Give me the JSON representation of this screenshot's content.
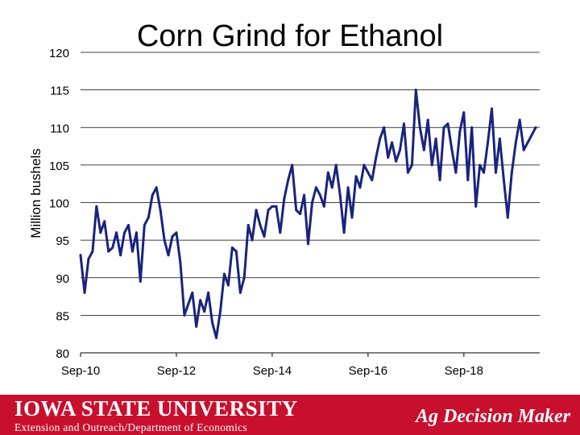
{
  "footer": {
    "university": "Iowa State University",
    "department": "Extension and Outreach/Department of Economics",
    "brand": "Ag Decision Maker",
    "color": "#c8102e"
  },
  "chart_data": {
    "type": "line",
    "title": "Corn Grind for Ethanol",
    "xlabel": "",
    "ylabel": "Million bushels",
    "ylim": [
      80,
      120
    ],
    "yticks": [
      80,
      85,
      90,
      95,
      100,
      105,
      110,
      115,
      120
    ],
    "xlim": [
      "2010-09",
      "2020-04"
    ],
    "xticks": [
      "Sep-10",
      "Sep-12",
      "Sep-14",
      "Sep-16",
      "Sep-18"
    ],
    "grid": "horizontal",
    "line_color": "#1a237e",
    "series": [
      {
        "name": "",
        "x": [
          "2010-09",
          "2010-10",
          "2010-11",
          "2010-12",
          "2011-01",
          "2011-02",
          "2011-03",
          "2011-04",
          "2011-05",
          "2011-06",
          "2011-07",
          "2011-08",
          "2011-09",
          "2011-10",
          "2011-11",
          "2011-12",
          "2012-01",
          "2012-02",
          "2012-03",
          "2012-04",
          "2012-05",
          "2012-06",
          "2012-07",
          "2012-08",
          "2012-09",
          "2012-10",
          "2012-11",
          "2012-12",
          "2013-01",
          "2013-02",
          "2013-03",
          "2013-04",
          "2013-05",
          "2013-06",
          "2013-07",
          "2013-08",
          "2013-09",
          "2013-10",
          "2013-11",
          "2013-12",
          "2014-01",
          "2014-02",
          "2014-03",
          "2014-04",
          "2014-05",
          "2014-06",
          "2014-07",
          "2014-08",
          "2014-09",
          "2014-10",
          "2014-11",
          "2014-12",
          "2015-01",
          "2015-02",
          "2015-03",
          "2015-04",
          "2015-05",
          "2015-06",
          "2015-07",
          "2015-08",
          "2015-09",
          "2015-10",
          "2015-11",
          "2015-12",
          "2016-01",
          "2016-02",
          "2016-03",
          "2016-04",
          "2016-05",
          "2016-06",
          "2016-07",
          "2016-08",
          "2016-09",
          "2016-10",
          "2016-11",
          "2016-12",
          "2017-01",
          "2017-02",
          "2017-03",
          "2017-04",
          "2017-05",
          "2017-06",
          "2017-07",
          "2017-08",
          "2017-09",
          "2017-10",
          "2017-11",
          "2017-12",
          "2018-01",
          "2018-02",
          "2018-03",
          "2018-04",
          "2018-05",
          "2018-06",
          "2018-07",
          "2018-08",
          "2018-09",
          "2018-10",
          "2018-11",
          "2018-12",
          "2019-01",
          "2019-02",
          "2019-03",
          "2019-04",
          "2019-05",
          "2019-06",
          "2019-07",
          "2019-08",
          "2019-09",
          "2019-10",
          "2019-11",
          "2019-12",
          "2020-01",
          "2020-02",
          "2020-03"
        ],
        "values": [
          93,
          88,
          92.5,
          93.5,
          99.5,
          96,
          97.5,
          93.5,
          94,
          96,
          93,
          96,
          97,
          93.5,
          96,
          89.5,
          97,
          98,
          101,
          102,
          99,
          95,
          93,
          95.5,
          96,
          92,
          85,
          86.5,
          88,
          83.5,
          87,
          85.5,
          88,
          84,
          82,
          85.5,
          90.5,
          89,
          94,
          93.5,
          88,
          90,
          97,
          95,
          99,
          97,
          95.5,
          99,
          99.5,
          99.5,
          96,
          100.5,
          103,
          105,
          99,
          98.5,
          101,
          94.5,
          100,
          102,
          101,
          99.5,
          104,
          102,
          105,
          101,
          96,
          102,
          98,
          103.5,
          102,
          105,
          104,
          103,
          106,
          108.5,
          110,
          106,
          108,
          105.5,
          107,
          110.5,
          104,
          105,
          115,
          110,
          107,
          111,
          105,
          108.5,
          103,
          110,
          110.5,
          107,
          104,
          109.5,
          112,
          103,
          110,
          99.5,
          105,
          104,
          108,
          112.5,
          104,
          108.5,
          103,
          98,
          104,
          108,
          111,
          107,
          108,
          109,
          110
        ]
      }
    ]
  }
}
